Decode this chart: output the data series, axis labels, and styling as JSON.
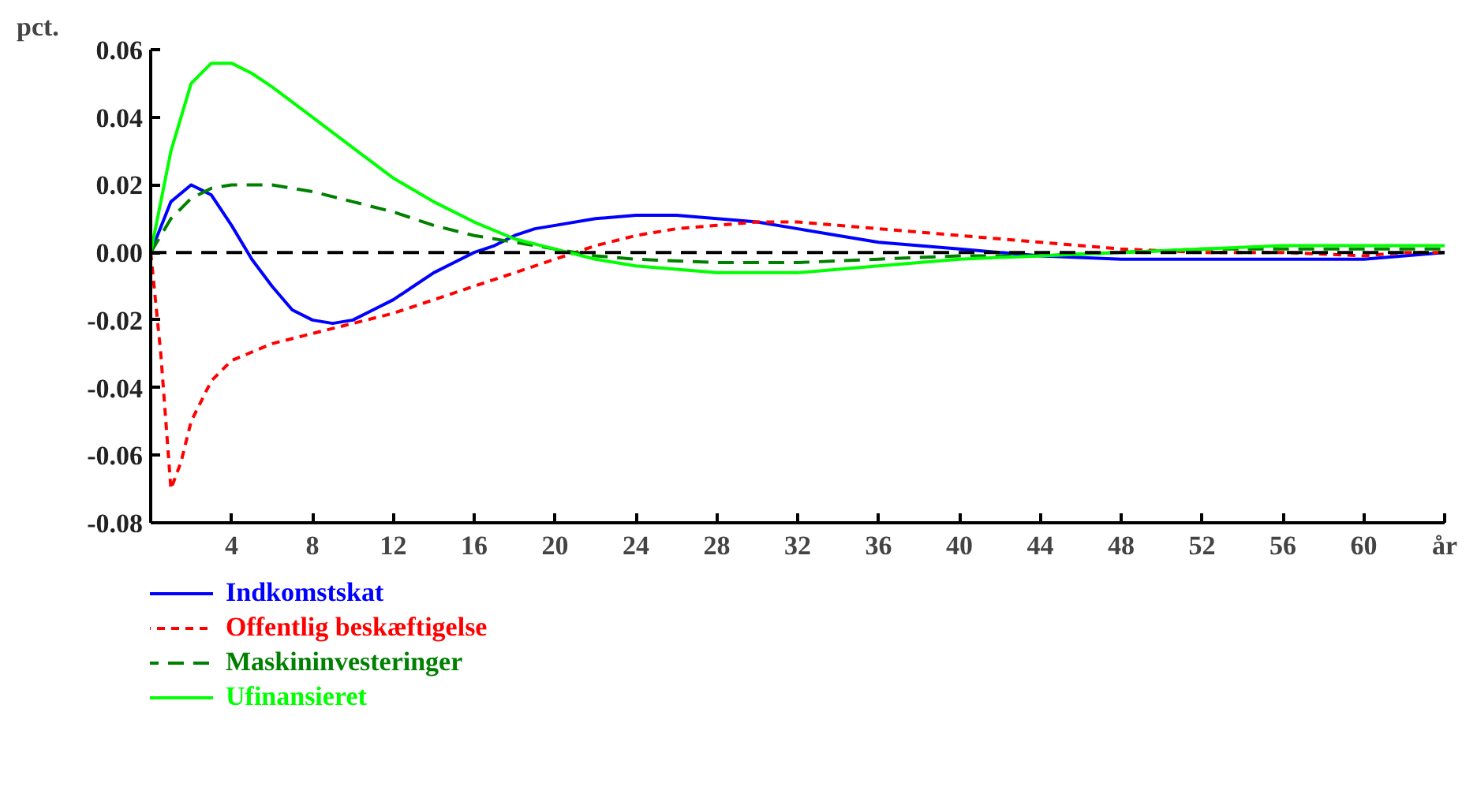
{
  "chart_data": {
    "type": "line",
    "ylabel": "pct.",
    "legend": "bottom",
    "grid": false,
    "xlim": [
      0,
      64
    ],
    "ylim": [
      -0.08,
      0.06
    ],
    "xticks": [
      4,
      8,
      12,
      16,
      20,
      24,
      28,
      32,
      36,
      40,
      44,
      48,
      52,
      56,
      60,
      {
        "value": 64,
        "label": "år"
      }
    ],
    "yticks": [
      {
        "value": -0.08,
        "label": "-0.08"
      },
      {
        "value": -0.06,
        "label": "-0.06"
      },
      {
        "value": -0.04,
        "label": "-0.04"
      },
      {
        "value": -0.02,
        "label": "-0.02"
      },
      {
        "value": 0,
        "label": "0.00"
      },
      {
        "value": 0.02,
        "label": "0.02"
      },
      {
        "value": 0.04,
        "label": "0.04"
      },
      {
        "value": 0.06,
        "label": "0.06"
      }
    ],
    "ref_lines": [
      {
        "axis": "y",
        "value": 0,
        "color": "#000000",
        "line_style": "dashed"
      }
    ],
    "series": [
      {
        "name": "Indkomstskat",
        "color": "#0000ff",
        "line_style": "solid",
        "x": [
          0,
          1,
          2,
          3,
          4,
          5,
          6,
          7,
          8,
          9,
          10,
          11,
          12,
          13,
          14,
          15,
          16,
          17,
          18,
          19,
          20,
          22,
          24,
          26,
          28,
          30,
          32,
          34,
          36,
          38,
          40,
          42,
          44,
          48,
          56,
          60,
          62,
          64
        ],
        "values": [
          0,
          0.015,
          0.02,
          0.017,
          0.008,
          -0.002,
          -0.01,
          -0.017,
          -0.02,
          -0.021,
          -0.02,
          -0.017,
          -0.014,
          -0.01,
          -0.006,
          -0.003,
          0,
          0.002,
          0.005,
          0.007,
          0.008,
          0.01,
          0.011,
          0.011,
          0.01,
          0.009,
          0.007,
          0.005,
          0.003,
          0.002,
          0.001,
          0,
          -0.001,
          -0.002,
          -0.002,
          -0.002,
          -0.001,
          0
        ]
      },
      {
        "name": "Offentlig beskæftigelse",
        "color": "#ff0000",
        "line_style": "dotted",
        "x": [
          0,
          0.5,
          1,
          1.5,
          2,
          3,
          4,
          6,
          8,
          10,
          12,
          14,
          16,
          18,
          20,
          22,
          24,
          26,
          28,
          30,
          32,
          34,
          36,
          38,
          40,
          44,
          48,
          52,
          56,
          60,
          62,
          64
        ],
        "values": [
          0,
          -0.03,
          -0.07,
          -0.062,
          -0.05,
          -0.038,
          -0.032,
          -0.027,
          -0.024,
          -0.021,
          -0.018,
          -0.014,
          -0.01,
          -0.006,
          -0.002,
          0.002,
          0.005,
          0.007,
          0.008,
          0.009,
          0.009,
          0.008,
          0.007,
          0.006,
          0.005,
          0.003,
          0.001,
          0,
          0,
          -0.001,
          0,
          0
        ]
      },
      {
        "name": "Maskininvesteringer",
        "color": "#008000",
        "line_style": "dashed",
        "x": [
          0,
          1,
          2,
          3,
          4,
          5,
          6,
          8,
          10,
          12,
          14,
          16,
          18,
          20,
          22,
          24,
          28,
          32,
          36,
          40,
          44,
          48,
          52,
          56,
          60,
          64
        ],
        "values": [
          0,
          0.01,
          0.016,
          0.019,
          0.02,
          0.02,
          0.02,
          0.018,
          0.015,
          0.012,
          0.008,
          0.005,
          0.003,
          0.001,
          -0.001,
          -0.002,
          -0.003,
          -0.003,
          -0.002,
          -0.001,
          -0.001,
          0,
          0.001,
          0.001,
          0.001,
          0.001
        ]
      },
      {
        "name": "Ufinansieret",
        "color": "#00ff00",
        "line_style": "solid",
        "x": [
          0,
          1,
          2,
          3,
          4,
          5,
          6,
          8,
          10,
          12,
          14,
          16,
          18,
          20,
          22,
          24,
          28,
          32,
          36,
          40,
          44,
          48,
          52,
          56,
          60,
          64
        ],
        "values": [
          0,
          0.03,
          0.05,
          0.056,
          0.056,
          0.053,
          0.049,
          0.04,
          0.031,
          0.022,
          0.015,
          0.009,
          0.004,
          0.001,
          -0.002,
          -0.004,
          -0.006,
          -0.006,
          -0.004,
          -0.002,
          -0.001,
          0,
          0.001,
          0.002,
          0.002,
          0.002
        ]
      }
    ]
  }
}
